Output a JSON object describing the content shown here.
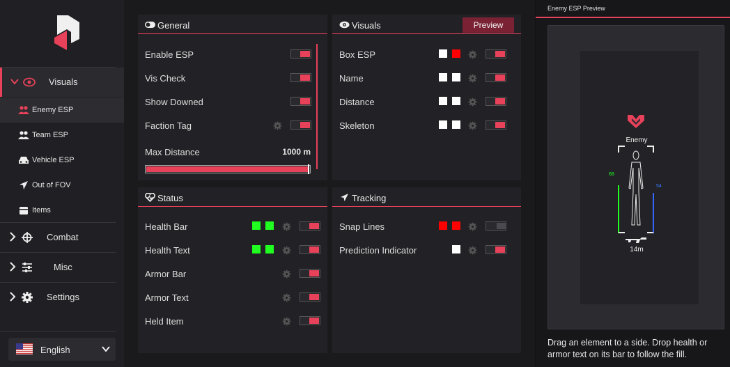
{
  "sidebar": {
    "nav": [
      {
        "label": "Visuals",
        "icon": "eye-icon",
        "expanded": true
      },
      {
        "label": "Combat",
        "icon": "crosshair-icon"
      },
      {
        "label": "Misc",
        "icon": "sliders-icon"
      },
      {
        "label": "Settings",
        "icon": "gear-icon"
      }
    ],
    "sub": [
      {
        "label": "Enemy ESP",
        "icon": "users-icon"
      },
      {
        "label": "Team ESP",
        "icon": "users-icon"
      },
      {
        "label": "Vehicle ESP",
        "icon": "car-icon"
      },
      {
        "label": "Out of FOV",
        "icon": "arrow-icon"
      },
      {
        "label": "Items",
        "icon": "box-icon"
      }
    ],
    "language": "English"
  },
  "general": {
    "title": "General",
    "rows": [
      {
        "label": "Enable ESP",
        "on": true
      },
      {
        "label": "Vis Check",
        "on": true
      },
      {
        "label": "Show Downed",
        "on": true
      },
      {
        "label": "Faction Tag",
        "on": true
      }
    ],
    "max_distance_label": "Max Distance",
    "max_distance_value": "1000 m"
  },
  "visuals": {
    "title": "Visuals",
    "preview_label": "Preview",
    "rows": [
      {
        "label": "Box ESP",
        "colors": [
          "#ffffff",
          "#ff0000"
        ]
      },
      {
        "label": "Name",
        "colors": [
          "#ffffff",
          "#ffffff"
        ]
      },
      {
        "label": "Distance",
        "colors": [
          "#ffffff",
          "#ffffff"
        ]
      },
      {
        "label": "Skeleton",
        "colors": [
          "#ffffff",
          "#ffffff"
        ]
      }
    ]
  },
  "status": {
    "title": "Status",
    "rows": [
      {
        "label": "Health Bar",
        "colors": [
          "#20ff20",
          "#20ff20"
        ]
      },
      {
        "label": "Health Text",
        "colors": [
          "#20ff20",
          "#20ff20"
        ]
      },
      {
        "label": "Armor Bar",
        "colors": []
      },
      {
        "label": "Armor Text",
        "colors": []
      },
      {
        "label": "Held Item",
        "colors": []
      }
    ]
  },
  "tracking": {
    "title": "Tracking",
    "rows": [
      {
        "label": "Snap Lines",
        "colors": [
          "#ff0000",
          "#ff0000"
        ],
        "on": false
      },
      {
        "label": "Prediction Indicator",
        "colors": [
          "#ffffff"
        ],
        "on": true
      }
    ]
  },
  "preview": {
    "title": "Enemy ESP Preview",
    "name": "Enemy",
    "health": "68",
    "armor": "54",
    "distance": "14m",
    "hint": "Drag an element to a side. Drop health or armor text on its bar to follow the fill."
  },
  "colors": {
    "accent": "#e8415a"
  }
}
